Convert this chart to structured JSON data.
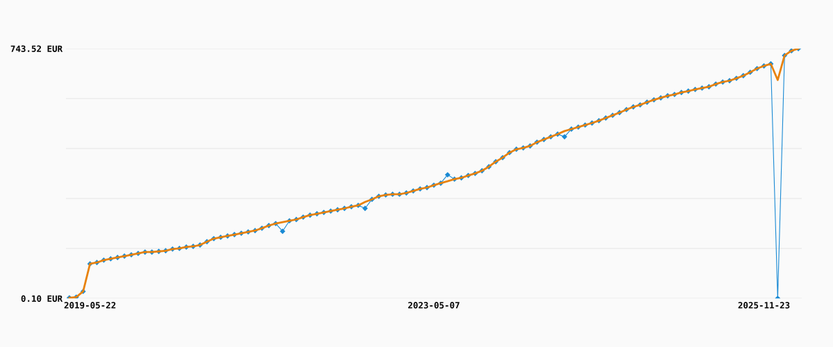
{
  "chart_data": {
    "type": "line",
    "categories": [
      null,
      null,
      null,
      "2019-05-22",
      null,
      null,
      null,
      null,
      null,
      null,
      null,
      null,
      null,
      null,
      null,
      null,
      null,
      null,
      null,
      null,
      null,
      null,
      null,
      null,
      null,
      null,
      null,
      null,
      null,
      null,
      null,
      null,
      null,
      null,
      null,
      null,
      null,
      null,
      null,
      null,
      null,
      null,
      null,
      null,
      null,
      null,
      null,
      null,
      null,
      null,
      null,
      null,
      null,
      "2023-05-07",
      null,
      null,
      null,
      null,
      null,
      null,
      null,
      null,
      null,
      null,
      null,
      null,
      null,
      null,
      null,
      null,
      null,
      null,
      null,
      null,
      null,
      null,
      null,
      null,
      null,
      null,
      null,
      null,
      null,
      null,
      null,
      null,
      null,
      null,
      null,
      null,
      null,
      null,
      null,
      null,
      null,
      null,
      null,
      null,
      null,
      null,
      null,
      "2025-11-23",
      null,
      null,
      null,
      null,
      null
    ],
    "series": [
      {
        "color": "#1a8ad4",
        "marker": "diamond",
        "values": [
          2,
          4,
          21,
          103,
          107,
          114,
          118,
          122,
          126,
          130,
          134,
          138,
          138,
          140,
          142,
          147,
          149,
          153,
          155,
          159,
          169,
          178,
          182,
          186,
          190,
          194,
          198,
          202,
          209,
          217,
          223,
          200,
          231,
          235,
          242,
          248,
          252,
          256,
          260,
          264,
          268,
          273,
          277,
          268,
          295,
          304,
          308,
          310,
          310,
          314,
          320,
          326,
          330,
          337,
          343,
          368,
          355,
          359,
          366,
          372,
          380,
          392,
          407,
          419,
          434,
          444,
          448,
          454,
          465,
          473,
          481,
          489,
          481,
          504,
          510,
          516,
          522,
          529,
          537,
          545,
          553,
          562,
          570,
          576,
          584,
          591,
          597,
          603,
          607,
          613,
          617,
          622,
          626,
          630,
          638,
          644,
          648,
          655,
          663,
          673,
          684,
          692,
          698,
          0.1,
          723,
          737,
          743.5
        ]
      },
      {
        "color": "#e8820c",
        "marker": "none",
        "values": [
          2,
          4,
          21,
          103,
          107,
          114,
          118,
          122,
          126,
          130,
          134,
          138,
          138,
          140,
          142,
          147,
          149,
          153,
          155,
          159,
          169,
          178,
          182,
          186,
          190,
          194,
          198,
          202,
          209,
          217,
          223,
          227,
          231,
          235,
          242,
          248,
          252,
          256,
          260,
          264,
          268,
          273,
          277,
          287,
          295,
          304,
          308,
          310,
          310,
          314,
          320,
          326,
          330,
          337,
          343,
          349,
          355,
          359,
          366,
          372,
          380,
          392,
          407,
          419,
          434,
          444,
          448,
          454,
          465,
          473,
          481,
          489,
          498,
          504,
          510,
          516,
          522,
          529,
          537,
          545,
          553,
          562,
          570,
          576,
          584,
          591,
          597,
          603,
          607,
          613,
          617,
          622,
          626,
          630,
          638,
          644,
          648,
          655,
          663,
          673,
          684,
          692,
          698,
          650,
          723,
          737,
          743.5
        ]
      }
    ],
    "ylim": [
      0.1,
      743.52
    ],
    "yticks": [
      {
        "value": 0.1,
        "label": "0.10 EUR"
      },
      {
        "value": 148.78,
        "label": null
      },
      {
        "value": 297.47,
        "label": null
      },
      {
        "value": 446.15,
        "label": null
      },
      {
        "value": 594.84,
        "label": null
      },
      {
        "value": 743.52,
        "label": "743.52 EUR"
      }
    ],
    "grid": "y",
    "legend": false,
    "line_style": "solid"
  }
}
